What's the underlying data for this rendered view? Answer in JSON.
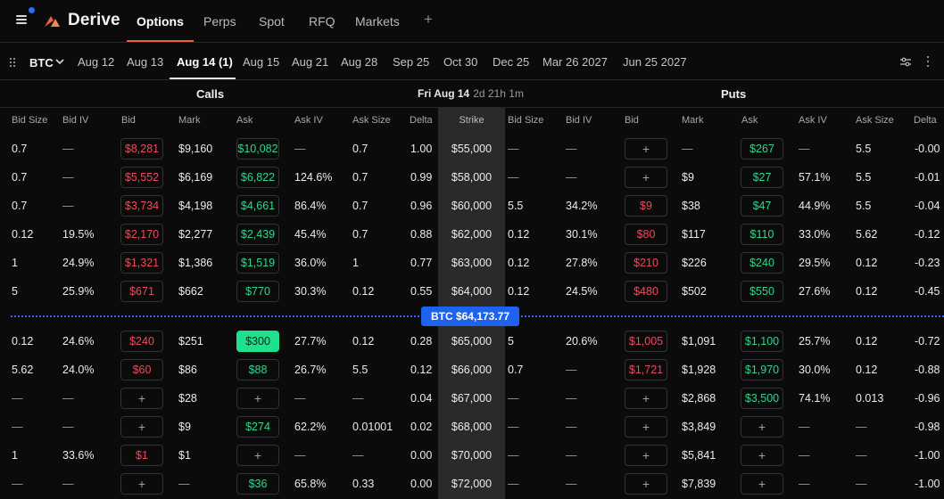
{
  "brand": {
    "name": "Derive"
  },
  "nav": {
    "tabs": [
      "Options",
      "Perps",
      "Spot",
      "RFQ",
      "Markets"
    ],
    "active": "Options",
    "add_symbol": "+"
  },
  "expiry_bar": {
    "asset": "BTC",
    "expiries": [
      "Aug 12",
      "Aug 13",
      "Aug 14 (1)",
      "Aug 15",
      "Aug 21",
      "Aug 28",
      "Sep 25",
      "Oct 30",
      "Dec 25",
      "Mar 26 2027",
      "Jun 25 2027"
    ],
    "active": "Aug 14 (1)"
  },
  "section": {
    "calls": "Calls",
    "puts": "Puts",
    "expiry_date": "Fri Aug 14",
    "countdown": "2d 21h 1m"
  },
  "columns": {
    "calls": [
      "Bid Size",
      "Bid IV",
      "Bid",
      "Mark",
      "Ask",
      "Ask IV",
      "Ask Size",
      "Delta"
    ],
    "strike": "Strike",
    "puts": [
      "Bid Size",
      "Bid IV",
      "Bid",
      "Mark",
      "Ask",
      "Ask IV",
      "Ask Size",
      "Delta"
    ]
  },
  "spot": {
    "label": "BTC $64,173.77"
  },
  "colors": {
    "accent": "#e8643c",
    "bid": "#ef4a5b",
    "ask": "#2fd88a",
    "spot": "#1e63f0"
  },
  "rows": [
    {
      "c_bs": "0.7",
      "c_biv": "—",
      "c_bid": "$8,281",
      "c_mark": "$9,160",
      "c_ask": "$10,082",
      "c_aiv": "—",
      "c_as": "0.7",
      "c_delta": "1.00",
      "strike": "$55,000",
      "p_bs": "—",
      "p_biv": "—",
      "p_bid": "+",
      "p_mark": "—",
      "p_ask": "$267",
      "p_aiv": "—",
      "p_as": "5.5",
      "p_delta": "-0.00"
    },
    {
      "c_bs": "0.7",
      "c_biv": "—",
      "c_bid": "$5,552",
      "c_mark": "$6,169",
      "c_ask": "$6,822",
      "c_aiv": "124.6%",
      "c_as": "0.7",
      "c_delta": "0.99",
      "strike": "$58,000",
      "p_bs": "—",
      "p_biv": "—",
      "p_bid": "+",
      "p_mark": "$9",
      "p_ask": "$27",
      "p_aiv": "57.1%",
      "p_as": "5.5",
      "p_delta": "-0.01"
    },
    {
      "c_bs": "0.7",
      "c_biv": "—",
      "c_bid": "$3,734",
      "c_mark": "$4,198",
      "c_ask": "$4,661",
      "c_aiv": "86.4%",
      "c_as": "0.7",
      "c_delta": "0.96",
      "strike": "$60,000",
      "p_bs": "5.5",
      "p_biv": "34.2%",
      "p_bid": "$9",
      "p_mark": "$38",
      "p_ask": "$47",
      "p_aiv": "44.9%",
      "p_as": "5.5",
      "p_delta": "-0.04"
    },
    {
      "c_bs": "0.12",
      "c_biv": "19.5%",
      "c_bid": "$2,170",
      "c_mark": "$2,277",
      "c_ask": "$2,439",
      "c_aiv": "45.4%",
      "c_as": "0.7",
      "c_delta": "0.88",
      "strike": "$62,000",
      "p_bs": "0.12",
      "p_biv": "30.1%",
      "p_bid": "$80",
      "p_mark": "$117",
      "p_ask": "$110",
      "p_aiv": "33.0%",
      "p_as": "5.62",
      "p_delta": "-0.12"
    },
    {
      "c_bs": "1",
      "c_biv": "24.9%",
      "c_bid": "$1,321",
      "c_mark": "$1,386",
      "c_ask": "$1,519",
      "c_aiv": "36.0%",
      "c_as": "1",
      "c_delta": "0.77",
      "strike": "$63,000",
      "p_bs": "0.12",
      "p_biv": "27.8%",
      "p_bid": "$210",
      "p_mark": "$226",
      "p_ask": "$240",
      "p_aiv": "29.5%",
      "p_as": "0.12",
      "p_delta": "-0.23"
    },
    {
      "c_bs": "5",
      "c_biv": "25.9%",
      "c_bid": "$671",
      "c_mark": "$662",
      "c_ask": "$770",
      "c_aiv": "30.3%",
      "c_as": "0.12",
      "c_delta": "0.55",
      "strike": "$64,000",
      "p_bs": "0.12",
      "p_biv": "24.5%",
      "p_bid": "$480",
      "p_mark": "$502",
      "p_ask": "$550",
      "p_aiv": "27.6%",
      "p_as": "0.12",
      "p_delta": "-0.45"
    },
    {
      "c_bs": "0.12",
      "c_biv": "24.6%",
      "c_bid": "$240",
      "c_mark": "$251",
      "c_ask": "$300",
      "c_aiv": "27.7%",
      "c_as": "0.12",
      "c_delta": "0.28",
      "strike": "$65,000",
      "p_bs": "5",
      "p_biv": "20.6%",
      "p_bid": "$1,005",
      "p_mark": "$1,091",
      "p_ask": "$1,100",
      "p_aiv": "25.7%",
      "p_as": "0.12",
      "p_delta": "-0.72"
    },
    {
      "c_bs": "5.62",
      "c_biv": "24.0%",
      "c_bid": "$60",
      "c_mark": "$86",
      "c_ask": "$88",
      "c_aiv": "26.7%",
      "c_as": "5.5",
      "c_delta": "0.12",
      "strike": "$66,000",
      "p_bs": "0.7",
      "p_biv": "—",
      "p_bid": "$1,721",
      "p_mark": "$1,928",
      "p_ask": "$1,970",
      "p_aiv": "30.0%",
      "p_as": "0.12",
      "p_delta": "-0.88"
    },
    {
      "c_bs": "—",
      "c_biv": "—",
      "c_bid": "+",
      "c_mark": "$28",
      "c_ask": "+",
      "c_aiv": "—",
      "c_as": "—",
      "c_delta": "0.04",
      "strike": "$67,000",
      "p_bs": "—",
      "p_biv": "—",
      "p_bid": "+",
      "p_mark": "$2,868",
      "p_ask": "$3,500",
      "p_aiv": "74.1%",
      "p_as": "0.013",
      "p_delta": "-0.96"
    },
    {
      "c_bs": "—",
      "c_biv": "—",
      "c_bid": "+",
      "c_mark": "$9",
      "c_ask": "$274",
      "c_aiv": "62.2%",
      "c_as": "0.01001",
      "c_delta": "0.02",
      "strike": "$68,000",
      "p_bs": "—",
      "p_biv": "—",
      "p_bid": "+",
      "p_mark": "$3,849",
      "p_ask": "+",
      "p_aiv": "—",
      "p_as": "—",
      "p_delta": "-0.98"
    },
    {
      "c_bs": "1",
      "c_biv": "33.6%",
      "c_bid": "$1",
      "c_mark": "$1",
      "c_ask": "+",
      "c_aiv": "—",
      "c_as": "—",
      "c_delta": "0.00",
      "strike": "$70,000",
      "p_bs": "—",
      "p_biv": "—",
      "p_bid": "+",
      "p_mark": "$5,841",
      "p_ask": "+",
      "p_aiv": "—",
      "p_as": "—",
      "p_delta": "-1.00"
    },
    {
      "c_bs": "—",
      "c_biv": "—",
      "c_bid": "+",
      "c_mark": "—",
      "c_ask": "$36",
      "c_aiv": "65.8%",
      "c_as": "0.33",
      "c_delta": "0.00",
      "strike": "$72,000",
      "p_bs": "—",
      "p_biv": "—",
      "p_bid": "+",
      "p_mark": "$7,839",
      "p_ask": "+",
      "p_aiv": "—",
      "p_as": "—",
      "p_delta": "-1.00"
    }
  ]
}
